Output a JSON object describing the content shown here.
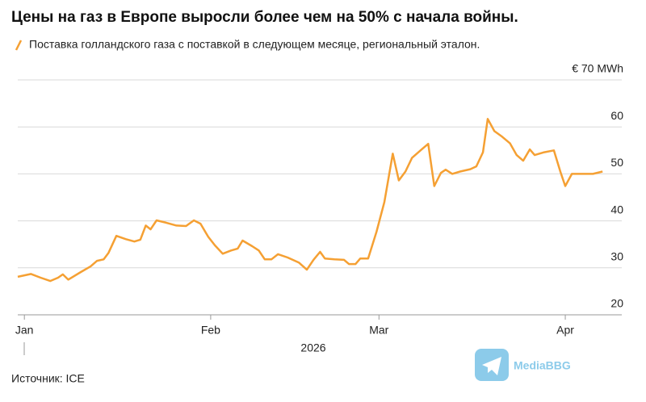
{
  "chart_data": {
    "type": "line",
    "title": "Цены на газ в Европе выросли более чем на 50% с начала войны.",
    "x_label": "2026",
    "source": "Источник: ICE",
    "watermark": "MediaBBG",
    "legend_position": "top-left",
    "grid": true,
    "x": [
      -1.1,
      1.1,
      2.7,
      4.3,
      5.6,
      6.4,
      7.3,
      9.4,
      11.0,
      12.1,
      13.2,
      14.0,
      15.3,
      16.9,
      18.3,
      19.3,
      20.2,
      21.0,
      22.0,
      23.6,
      25.3,
      26.9,
      28.2,
      29.3,
      30.6,
      31.7,
      33.0,
      34.4,
      35.5,
      36.3,
      37.9,
      39.0,
      40.0,
      41.1,
      42.2,
      43.8,
      45.7,
      47.0,
      48.1,
      49.2,
      50.0,
      51.6,
      53.2,
      54.0,
      55.1,
      55.9,
      57.2,
      58.6,
      59.9,
      61.3,
      62.3,
      63.4,
      64.5,
      66.1,
      67.2,
      68.2,
      69.3,
      70.1,
      71.2,
      72.5,
      74.2,
      75.2,
      76.3,
      77.1,
      78.2,
      79.5,
      80.8,
      81.9,
      83.0,
      84.1,
      84.9,
      86.5,
      88.1,
      89.2,
      90.0,
      91.1,
      92.7,
      94.6,
      96.2
    ],
    "series": [
      {
        "name": "Поставка голландского газа с поставкой в следующем месяце, региональный эталон.",
        "color": "#f5a033",
        "values": [
          28.1,
          28.7,
          27.9,
          27.2,
          27.9,
          28.6,
          27.5,
          29.1,
          30.3,
          31.5,
          31.8,
          33.2,
          36.8,
          36.1,
          35.6,
          36.0,
          39.0,
          38.2,
          40.1,
          39.6,
          39.0,
          38.9,
          40.1,
          39.4,
          36.6,
          34.8,
          33.0,
          33.7,
          34.1,
          35.8,
          34.6,
          33.7,
          31.8,
          31.8,
          32.9,
          32.2,
          31.1,
          29.6,
          31.7,
          33.4,
          32.0,
          31.8,
          31.7,
          30.8,
          30.8,
          32.0,
          32.0,
          37.7,
          44.0,
          54.3,
          48.6,
          50.5,
          53.4,
          55.2,
          56.4,
          47.4,
          50.2,
          50.9,
          50.0,
          50.5,
          51.0,
          51.6,
          54.6,
          61.7,
          59.1,
          57.9,
          56.5,
          54.0,
          52.8,
          55.2,
          54.0,
          54.6,
          55.0,
          50.4,
          47.4,
          50.0,
          50.0,
          50.0,
          50.5
        ]
      }
    ],
    "xlim": [
      -1.1,
      99.4
    ],
    "xticks": [
      {
        "value": 0,
        "label": "Jan"
      },
      {
        "value": 31,
        "label": "Feb"
      },
      {
        "value": 59,
        "label": "Mar"
      },
      {
        "value": 90,
        "label": "Apr"
      }
    ],
    "ylim": [
      20,
      70
    ],
    "yticks": [
      20,
      30,
      40,
      50,
      60,
      {
        "value": 70,
        "label": "€ 70 MWh"
      }
    ]
  }
}
